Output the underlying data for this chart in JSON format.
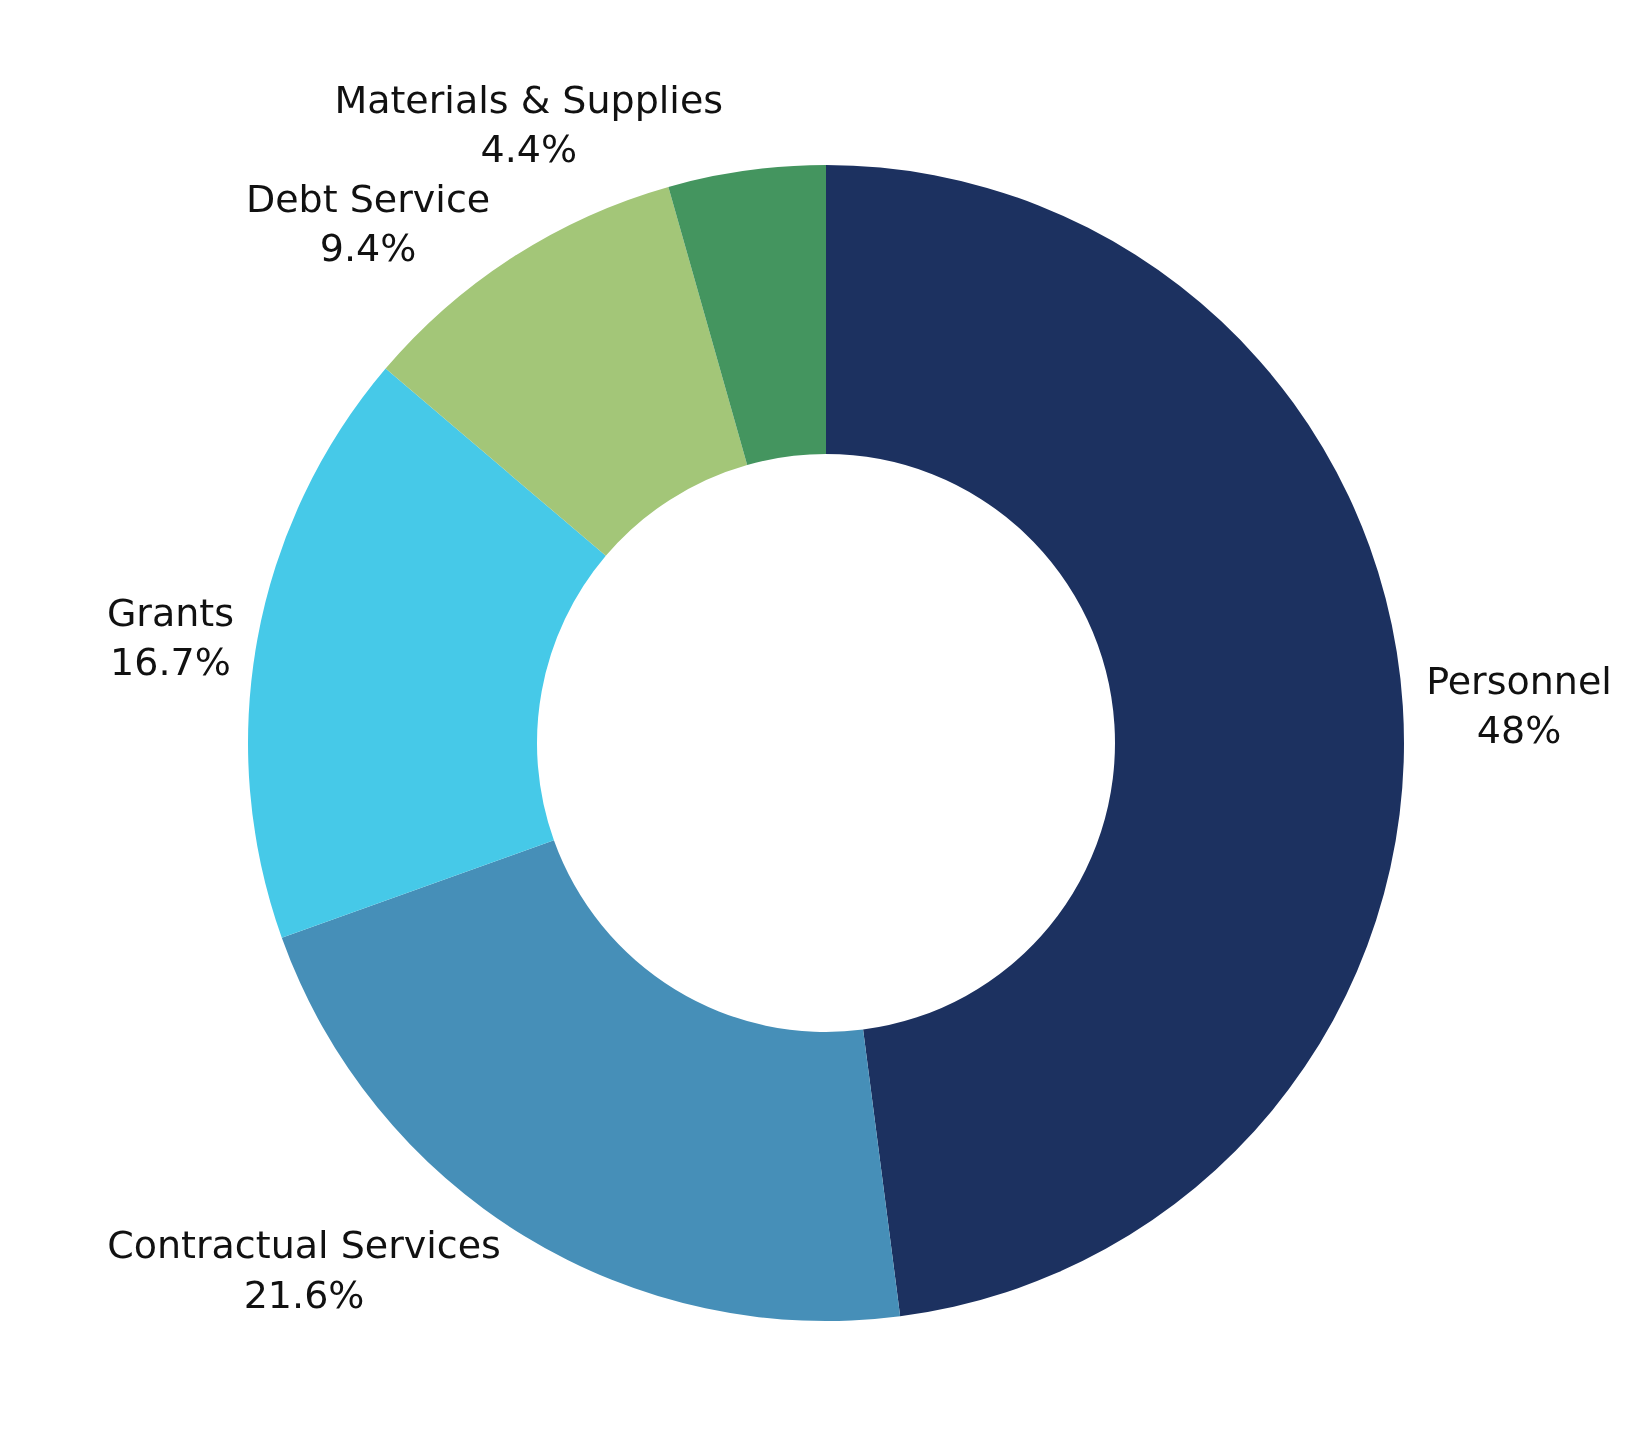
{
  "chart_data": {
    "type": "donut",
    "categories": [
      "Personnel",
      "Contractual Services",
      "Grants",
      "Debt Service",
      "Materials & Supplies"
    ],
    "values": [
      48,
      21.6,
      16.7,
      9.4,
      4.4
    ],
    "value_labels": [
      "48%",
      "21.6%",
      "16.7%",
      "9.4%",
      "4.4%"
    ],
    "colors": [
      "#1c3160",
      "#468fb8",
      "#46c9e8",
      "#a3c678",
      "#44955f"
    ],
    "legend": false
  }
}
